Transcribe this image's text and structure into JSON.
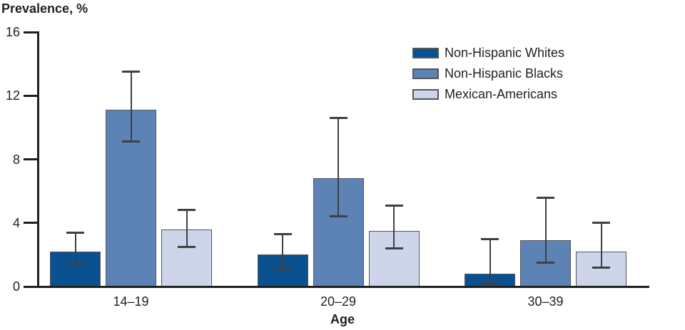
{
  "chart_data": {
    "type": "bar",
    "title": "Prevalence, %",
    "xlabel": "Age",
    "ylabel": "Prevalence, %",
    "categories": [
      "14–19",
      "20–29",
      "30–39"
    ],
    "series": [
      {
        "name": "Non-Hispanic Whites",
        "color": "#0a5191",
        "values": [
          2.2,
          2.0,
          0.8
        ],
        "ci_low": [
          1.4,
          1.1,
          0.2
        ],
        "ci_high": [
          3.4,
          3.3,
          3.0
        ]
      },
      {
        "name": "Non-Hispanic Blacks",
        "color": "#5d82b5",
        "values": [
          11.1,
          6.8,
          2.9
        ],
        "ci_low": [
          9.1,
          4.4,
          1.5
        ],
        "ci_high": [
          13.5,
          10.6,
          5.6
        ]
      },
      {
        "name": "Mexican-Americans",
        "color": "#ccd5e9",
        "values": [
          3.6,
          3.5,
          2.2
        ],
        "ci_low": [
          2.5,
          2.4,
          1.2
        ],
        "ci_high": [
          4.8,
          5.1,
          4.0
        ]
      }
    ],
    "ylim": [
      0,
      16
    ],
    "yticks": [
      0,
      4,
      8,
      12,
      16
    ],
    "grid": false,
    "error_bars": true,
    "legend_position": "top-right",
    "colors": {
      "bar_border": "#54565b",
      "error_bar": "#3f4043",
      "axis": "#1f1f1f",
      "text": "#231f20",
      "background": "#ffffff"
    }
  }
}
